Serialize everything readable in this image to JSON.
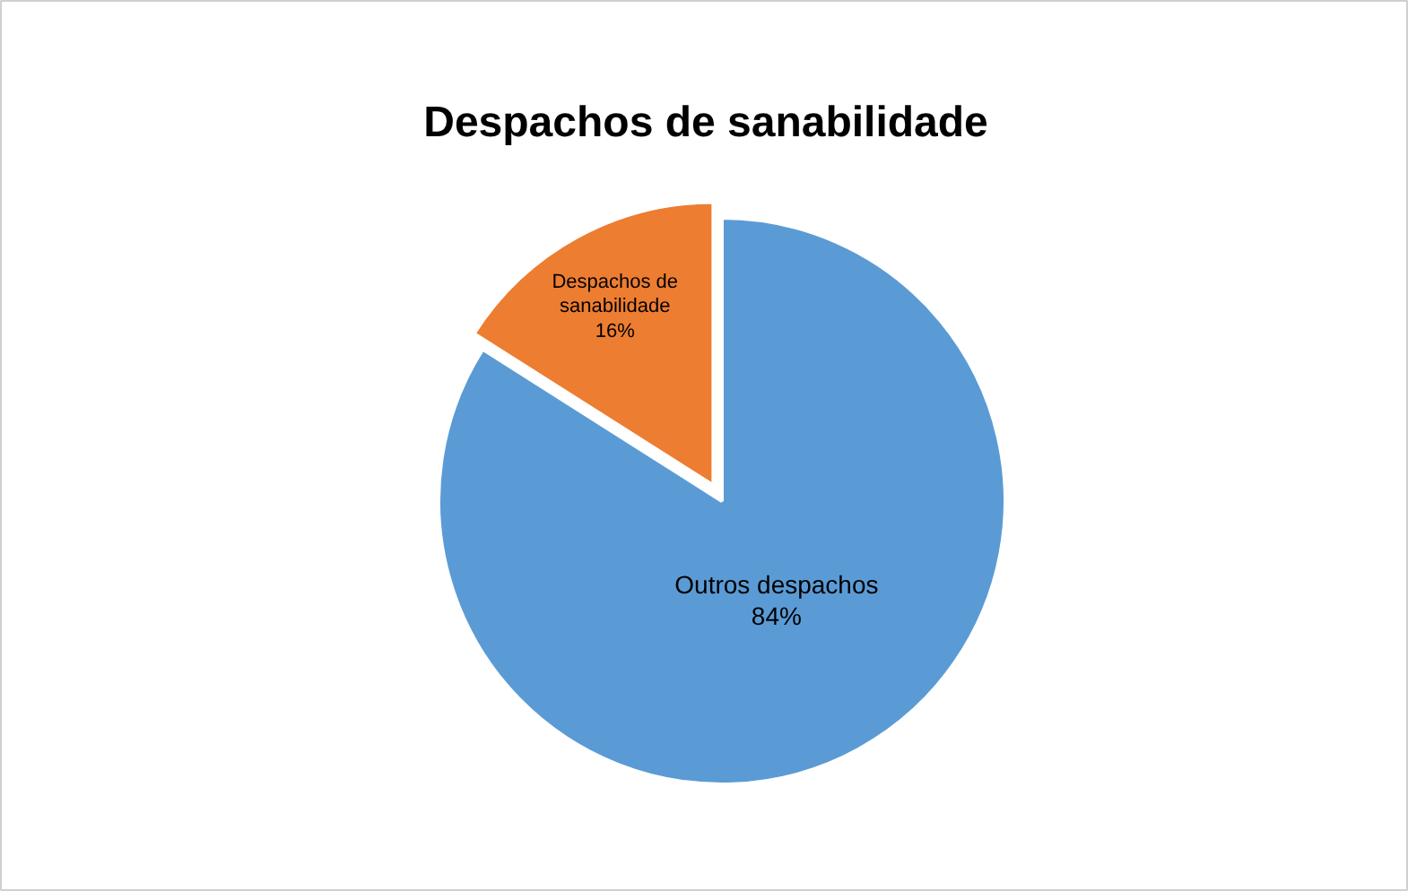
{
  "chart_data": {
    "type": "pie",
    "title": "Despachos de sanabilidade",
    "categories": [
      "Outros despachos",
      "Despachos de sanabilidade"
    ],
    "values": [
      84,
      16
    ],
    "colors": [
      "#5b9bd5",
      "#ed7d31"
    ],
    "value_labels": [
      "84%",
      "16%"
    ]
  }
}
